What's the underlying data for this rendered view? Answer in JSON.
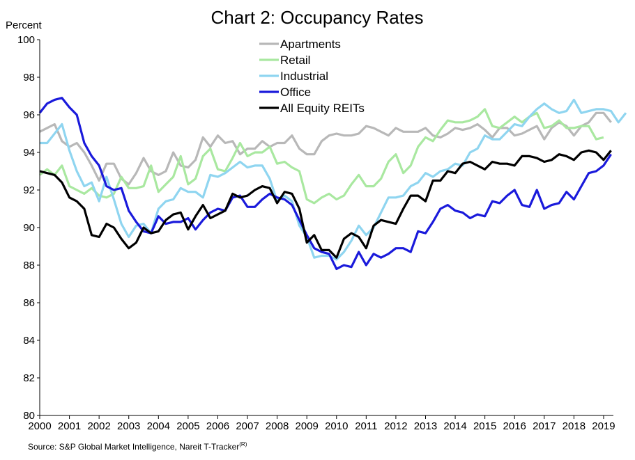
{
  "chart_data": {
    "type": "line",
    "title": "Chart 2: Occupancy Rates",
    "ylabel": "Percent",
    "xlabel": "",
    "ylim": [
      80,
      100
    ],
    "xlim": [
      2000,
      2019.33
    ],
    "y_ticks": [
      "80",
      "82",
      "84",
      "86",
      "88",
      "90",
      "92",
      "94",
      "96",
      "98",
      "100"
    ],
    "x_ticks": [
      "2000",
      "2001",
      "2002",
      "2003",
      "2004",
      "2005",
      "2006",
      "2007",
      "2008",
      "2009",
      "2010",
      "2011",
      "2012",
      "2013",
      "2014",
      "2015",
      "2016",
      "2017",
      "2018",
      "2019"
    ],
    "grid": false,
    "legend_position": "top-center",
    "source": "Source: S&P Global Market Intelligence,  Nareit T-Tracker",
    "source_superscript": "(R)",
    "x_start": 2000,
    "x_step": 0.25,
    "series": [
      {
        "name": "Apartments",
        "color": "#b8b8b8",
        "values": [
          95.1,
          95.3,
          95.5,
          94.6,
          94.3,
          94.5,
          94.0,
          93.3,
          92.5,
          93.4,
          93.4,
          92.6,
          92.3,
          92.9,
          93.7,
          93.0,
          92.8,
          93.0,
          94.0,
          93.3,
          93.2,
          93.6,
          94.8,
          94.3,
          94.9,
          94.5,
          94.6,
          93.9,
          94.2,
          94.2,
          94.6,
          94.3,
          94.5,
          94.5,
          94.9,
          94.2,
          93.9,
          93.9,
          94.6,
          94.9,
          95.0,
          94.9,
          94.9,
          95.0,
          95.4,
          95.3,
          95.1,
          94.9,
          95.3,
          95.1,
          95.1,
          95.1,
          95.3,
          94.9,
          94.8,
          95.0,
          95.3,
          95.2,
          95.3,
          95.5,
          95.2,
          94.8,
          95.3,
          95.3,
          94.9,
          95.0,
          95.2,
          95.4,
          94.7,
          95.3,
          95.6,
          95.4,
          94.9,
          95.4,
          95.6,
          96.1,
          96.1,
          95.6
        ]
      },
      {
        "name": "Retail",
        "color": "#a9e8a0",
        "values": [
          92.8,
          93.1,
          92.8,
          93.3,
          92.2,
          92.0,
          91.8,
          92.1,
          91.7,
          91.6,
          91.8,
          92.7,
          92.1,
          92.1,
          92.2,
          93.3,
          91.9,
          92.3,
          92.7,
          93.8,
          92.3,
          92.6,
          93.8,
          94.2,
          93.1,
          93.0,
          93.7,
          94.5,
          93.8,
          94.0,
          94.0,
          94.3,
          93.4,
          93.5,
          93.2,
          93.0,
          91.5,
          91.3,
          91.6,
          91.8,
          91.5,
          91.7,
          92.3,
          92.8,
          92.2,
          92.2,
          92.6,
          93.5,
          93.9,
          92.9,
          93.3,
          94.3,
          94.8,
          94.6,
          95.2,
          95.7,
          95.6,
          95.6,
          95.7,
          95.9,
          96.3,
          95.4,
          95.3,
          95.6,
          95.9,
          95.6,
          95.9,
          96.1,
          95.3,
          95.4,
          95.7,
          95.3,
          95.3,
          95.4,
          95.4,
          94.7,
          94.8
        ]
      },
      {
        "name": "Industrial",
        "color": "#8fd5f0",
        "values": [
          94.5,
          94.5,
          95.0,
          95.5,
          94.1,
          93.0,
          92.2,
          92.4,
          91.4,
          92.7,
          91.5,
          90.2,
          89.5,
          90.1,
          90.2,
          89.7,
          91.0,
          91.4,
          91.5,
          92.1,
          91.9,
          91.9,
          91.6,
          92.8,
          92.7,
          92.9,
          93.2,
          93.5,
          93.2,
          93.3,
          93.3,
          92.6,
          91.4,
          91.7,
          91.4,
          90.1,
          89.5,
          88.4,
          88.5,
          88.5,
          88.3,
          88.7,
          89.3,
          90.1,
          89.6,
          90.0,
          90.8,
          91.6,
          91.6,
          91.7,
          92.2,
          92.4,
          92.9,
          92.7,
          93.0,
          93.1,
          93.4,
          93.3,
          94.0,
          94.2,
          94.9,
          94.7,
          94.7,
          95.1,
          95.5,
          95.4,
          95.9,
          96.3,
          96.6,
          96.3,
          96.1,
          96.2,
          96.8,
          96.1,
          96.2,
          96.3,
          96.3,
          96.2,
          95.6,
          96.1
        ]
      },
      {
        "name": "Office",
        "color": "#1a1adb",
        "values": [
          96.1,
          96.6,
          96.8,
          96.9,
          96.4,
          96.0,
          94.5,
          93.8,
          93.3,
          92.2,
          92.0,
          92.1,
          90.9,
          90.3,
          89.8,
          89.7,
          90.6,
          90.2,
          90.3,
          90.3,
          90.5,
          89.9,
          90.4,
          90.8,
          91.0,
          90.9,
          91.6,
          91.7,
          91.1,
          91.1,
          91.5,
          91.8,
          91.6,
          91.5,
          91.2,
          90.4,
          89.6,
          88.9,
          88.7,
          88.6,
          87.8,
          88.0,
          87.9,
          88.7,
          88.0,
          88.6,
          88.4,
          88.6,
          88.9,
          88.9,
          88.7,
          89.8,
          89.7,
          90.3,
          91.0,
          91.2,
          90.9,
          90.8,
          90.5,
          90.7,
          90.6,
          91.4,
          91.3,
          91.7,
          92.0,
          91.2,
          91.1,
          92.0,
          91.0,
          91.2,
          91.3,
          91.9,
          91.5,
          92.2,
          92.9,
          93.0,
          93.3,
          93.9
        ]
      },
      {
        "name": "All Equity REITs",
        "color": "#000000",
        "values": [
          93.0,
          92.9,
          92.8,
          92.4,
          91.6,
          91.4,
          91.0,
          89.6,
          89.5,
          90.2,
          90.0,
          89.4,
          88.9,
          89.2,
          90.0,
          89.7,
          89.8,
          90.4,
          90.7,
          90.8,
          89.9,
          90.6,
          91.2,
          90.5,
          90.7,
          90.9,
          91.8,
          91.6,
          91.7,
          92.0,
          92.2,
          92.1,
          91.3,
          91.9,
          91.8,
          91.0,
          89.2,
          89.6,
          88.8,
          88.8,
          88.4,
          89.4,
          89.7,
          89.5,
          88.9,
          90.1,
          90.4,
          90.3,
          90.2,
          91.0,
          91.7,
          91.7,
          91.4,
          92.5,
          92.5,
          93.0,
          92.9,
          93.4,
          93.5,
          93.3,
          93.1,
          93.5,
          93.4,
          93.4,
          93.3,
          93.8,
          93.8,
          93.7,
          93.5,
          93.6,
          93.9,
          93.8,
          93.6,
          94.0,
          94.1,
          94.0,
          93.6,
          94.1
        ]
      }
    ]
  }
}
